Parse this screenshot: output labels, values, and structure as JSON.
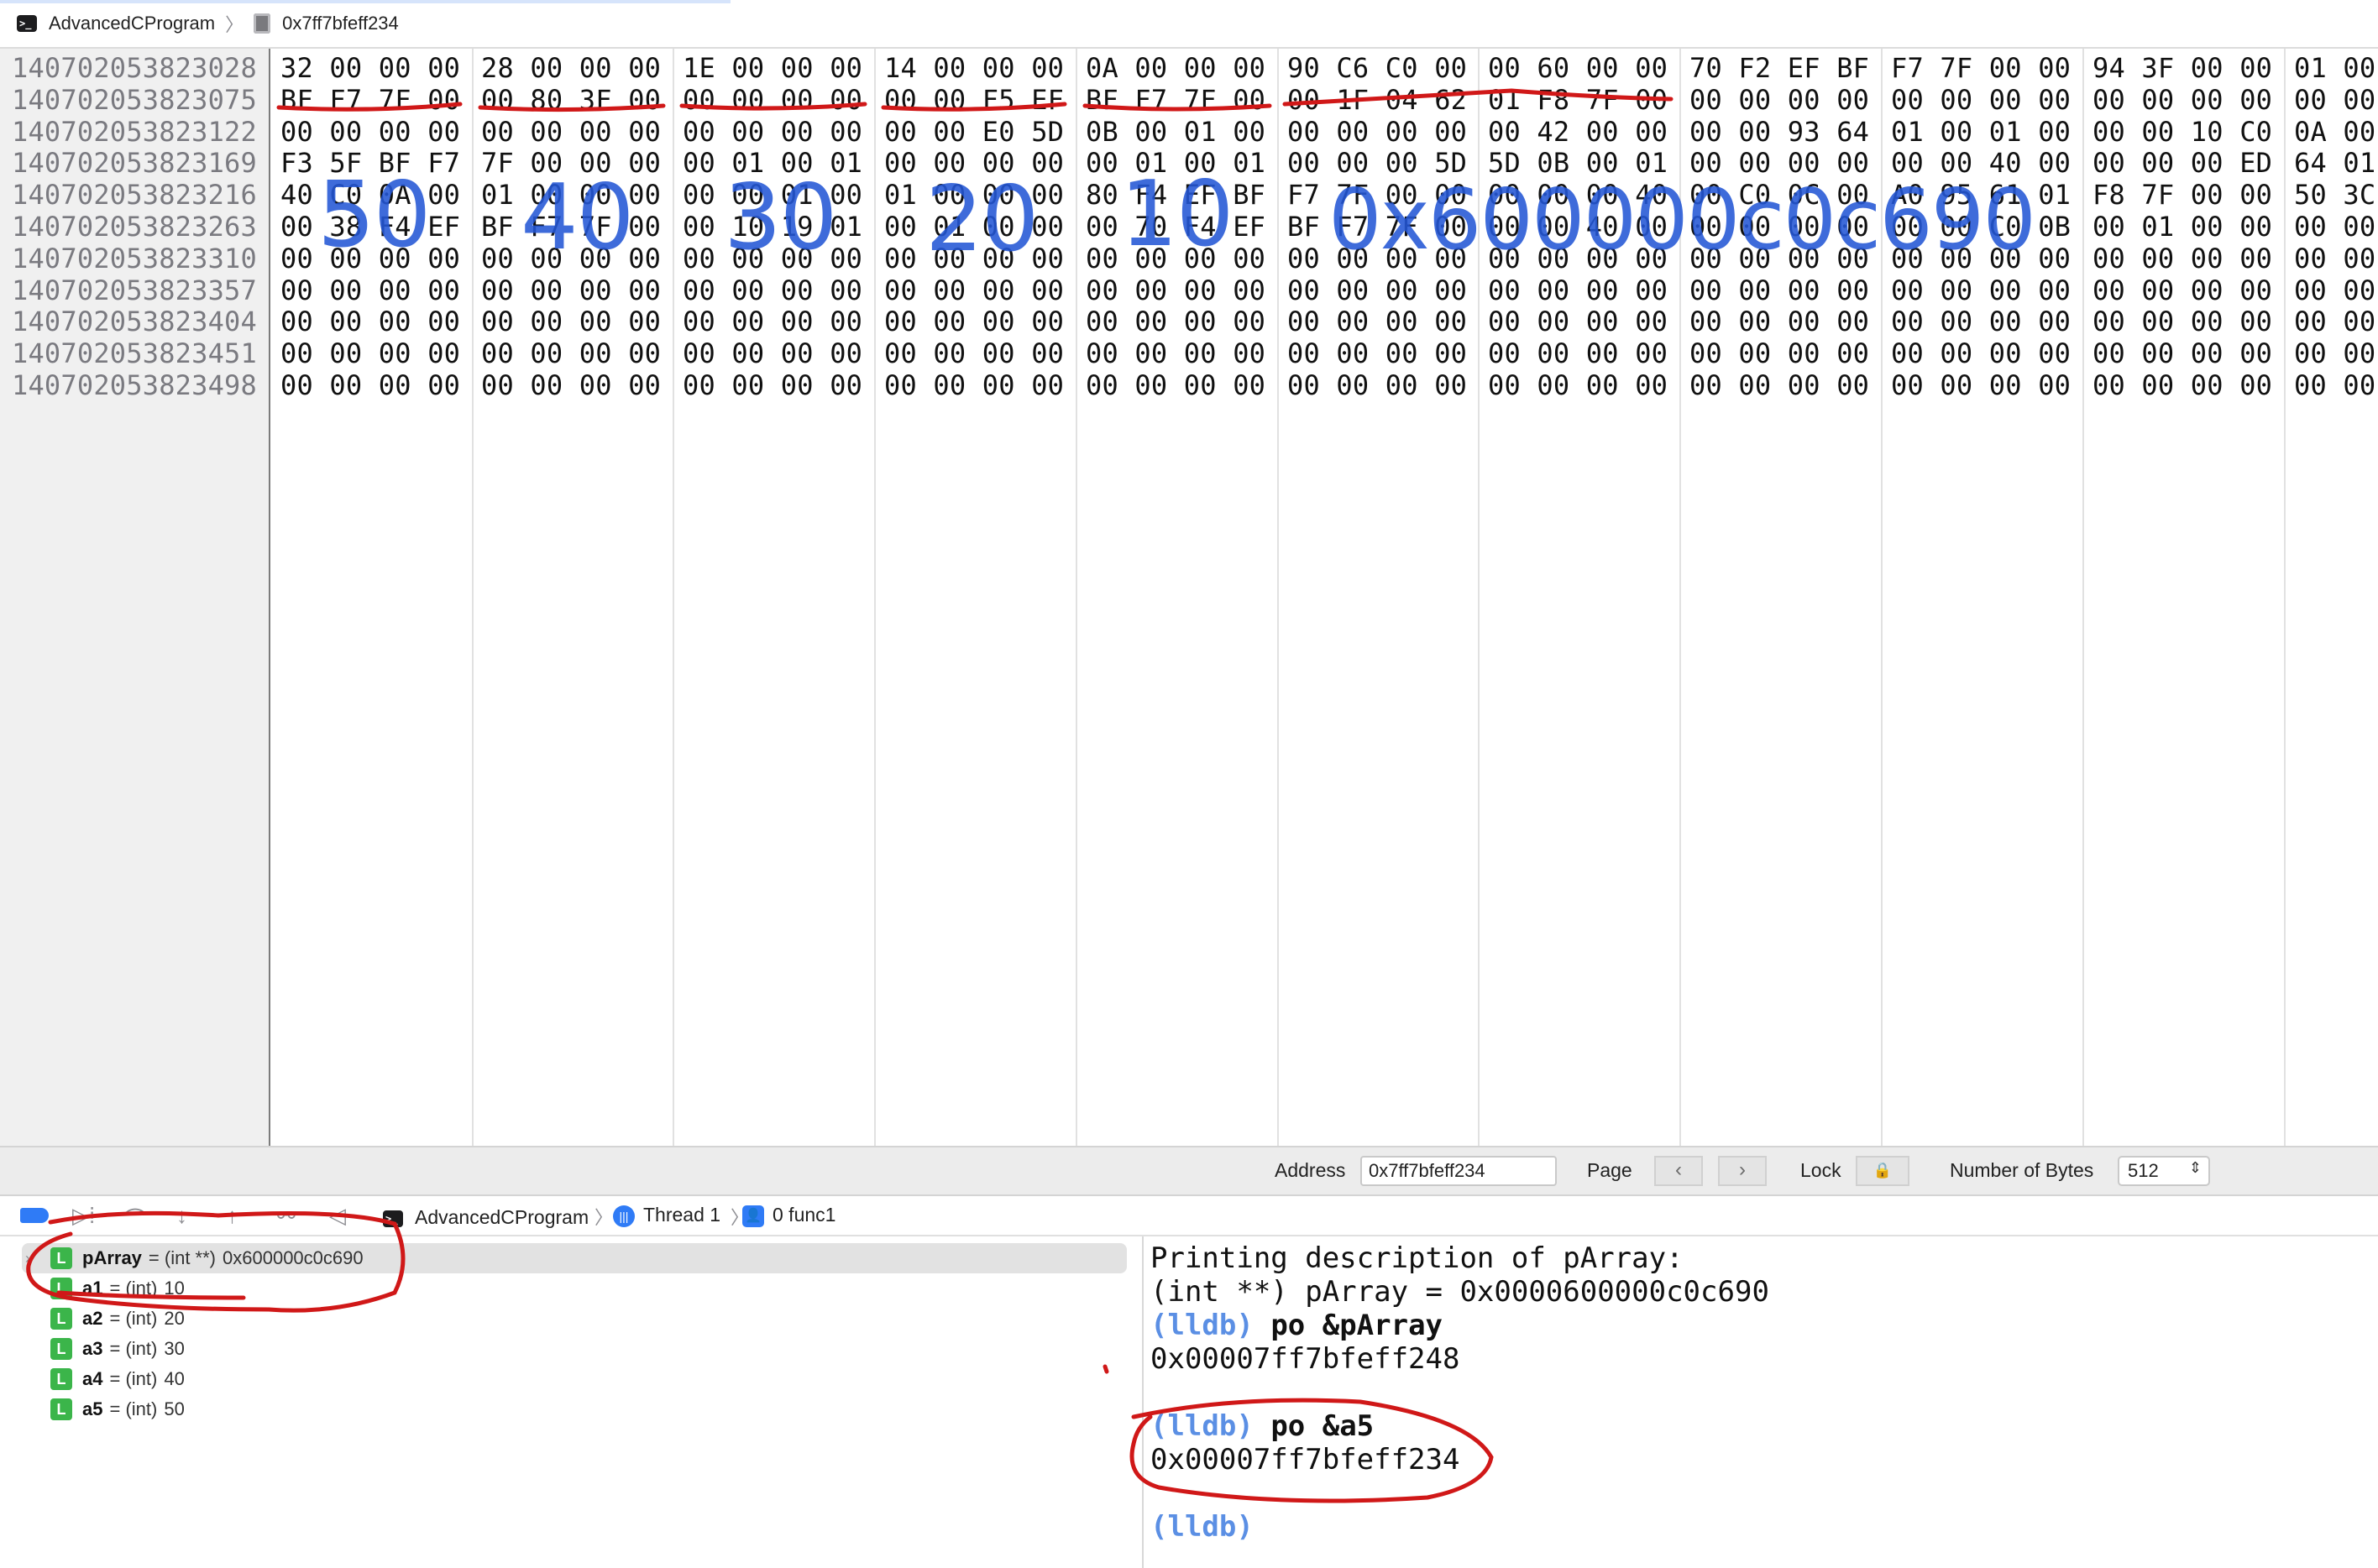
{
  "breadcrumb": {
    "project": "AdvancedCProgram",
    "location": "0x7ff7bfeff234"
  },
  "memory": {
    "addresses": [
      "140702053823028",
      "140702053823075",
      "140702053823122",
      "140702053823169",
      "140702053823216",
      "140702053823263",
      "140702053823310",
      "140702053823357",
      "140702053823404",
      "140702053823451",
      "140702053823498"
    ],
    "rows": [
      [
        "32 00 00 00",
        "28 00 00 00",
        "1E 00 00 00",
        "14 00 00 00",
        "0A 00 00 00",
        "90 C6 C0 00",
        "00 60 00 00",
        "70 F2 EF BF",
        "F7 7F 00 00",
        "94 3F 00 00",
        "01 00"
      ],
      [
        "BF F7 7F 00",
        "00 80 3F 00",
        "00 00 00 00",
        "00 00 F5 EF",
        "BF F7 7F 00",
        "00 1F 04 62",
        "01 F8 7F 00",
        "00 00 00 00",
        "00 00 00 00",
        "00 00 00 00",
        "00 00"
      ],
      [
        "00 00 00 00",
        "00 00 00 00",
        "00 00 00 00",
        "00 00 E0 5D",
        "0B 00 01 00",
        "00 00 00 00",
        "00 42 00 00",
        "00 00 93 64",
        "01 00 01 00",
        "00 00 10 C0",
        "0A 00"
      ],
      [
        "F3 5F BF F7",
        "7F 00 00 00",
        "00 01 00 01",
        "00 00 00 00",
        "00 01 00 01",
        "00 00 00 5D",
        "5D 0B 00 01",
        "00 00 00 00",
        "00 00 40 00",
        "00 00 00 ED",
        "64 01"
      ],
      [
        "40 C0 0A 00",
        "01 00 00 00",
        "00 00 01 00",
        "01 00 00 00",
        "80 F4 EF BF",
        "F7 7F 00 00",
        "00 00 00 40",
        "00 C0 0C 00",
        "A0 95 61 01",
        "F8 7F 00 00",
        "50 3C"
      ],
      [
        "00 38 F4 EF",
        "BF F7 7F 00",
        "00 10 19 01",
        "00 01 00 00",
        "00 70 F4 EF",
        "BF F7 7F 00",
        "00 00 40 00",
        "00 00 00 00",
        "00 00 C0 0B",
        "00 01 00 00",
        "00 00"
      ],
      [
        "00 00 00 00",
        "00 00 00 00",
        "00 00 00 00",
        "00 00 00 00",
        "00 00 00 00",
        "00 00 00 00",
        "00 00 00 00",
        "00 00 00 00",
        "00 00 00 00",
        "00 00 00 00",
        "00 00"
      ],
      [
        "00 00 00 00",
        "00 00 00 00",
        "00 00 00 00",
        "00 00 00 00",
        "00 00 00 00",
        "00 00 00 00",
        "00 00 00 00",
        "00 00 00 00",
        "00 00 00 00",
        "00 00 00 00",
        "00 00"
      ],
      [
        "00 00 00 00",
        "00 00 00 00",
        "00 00 00 00",
        "00 00 00 00",
        "00 00 00 00",
        "00 00 00 00",
        "00 00 00 00",
        "00 00 00 00",
        "00 00 00 00",
        "00 00 00 00",
        "00 00"
      ],
      [
        "00 00 00 00",
        "00 00 00 00",
        "00 00 00 00",
        "00 00 00 00",
        "00 00 00 00",
        "00 00 00 00",
        "00 00 00 00",
        "00 00 00 00",
        "00 00 00 00",
        "00 00 00 00",
        "00 00"
      ],
      [
        "00 00 00 00",
        "00 00 00 00",
        "00 00 00 00",
        "00 00 00 00",
        "00 00 00 00",
        "00 00 00 00",
        "00 00 00 00",
        "00 00 00 00",
        "00 00 00 00",
        "00 00 00 00",
        "00 00"
      ]
    ],
    "annotations": [
      "50",
      "40",
      "30",
      "20",
      "10",
      "0x600000c0c690"
    ]
  },
  "footer": {
    "address_label": "Address",
    "address_value": "0x7ff7bfeff234",
    "page_label": "Page",
    "lock_label": "Lock",
    "bytes_label": "Number of Bytes",
    "bytes_value": "512"
  },
  "debugbar": {
    "project": "AdvancedCProgram",
    "thread": "Thread 1",
    "frame": "0 func1"
  },
  "variables": [
    {
      "name": "pArray",
      "type": "= (int **)",
      "value": "0x600000c0c690"
    },
    {
      "name": "a1",
      "type": "= (int)",
      "value": "10"
    },
    {
      "name": "a2",
      "type": "= (int)",
      "value": "20"
    },
    {
      "name": "a3",
      "type": "= (int)",
      "value": "30"
    },
    {
      "name": "a4",
      "type": "= (int)",
      "value": "40"
    },
    {
      "name": "a5",
      "type": "= (int)",
      "value": "50"
    }
  ],
  "console": {
    "line1": "Printing description of pArray:",
    "line2": "(int **) pArray = 0x0000600000c0c690",
    "prompt": "(lldb)",
    "cmd1": "po &pArray",
    "out1": "0x00007ff7bfeff248",
    "cmd2": "po &a5",
    "out2": "0x00007ff7bfeff234"
  },
  "colors": {
    "accent_blue": "#2f7bf6",
    "ink_red": "#d01818",
    "ink_blue": "#2457d6",
    "badge_green": "#3bb54a"
  }
}
